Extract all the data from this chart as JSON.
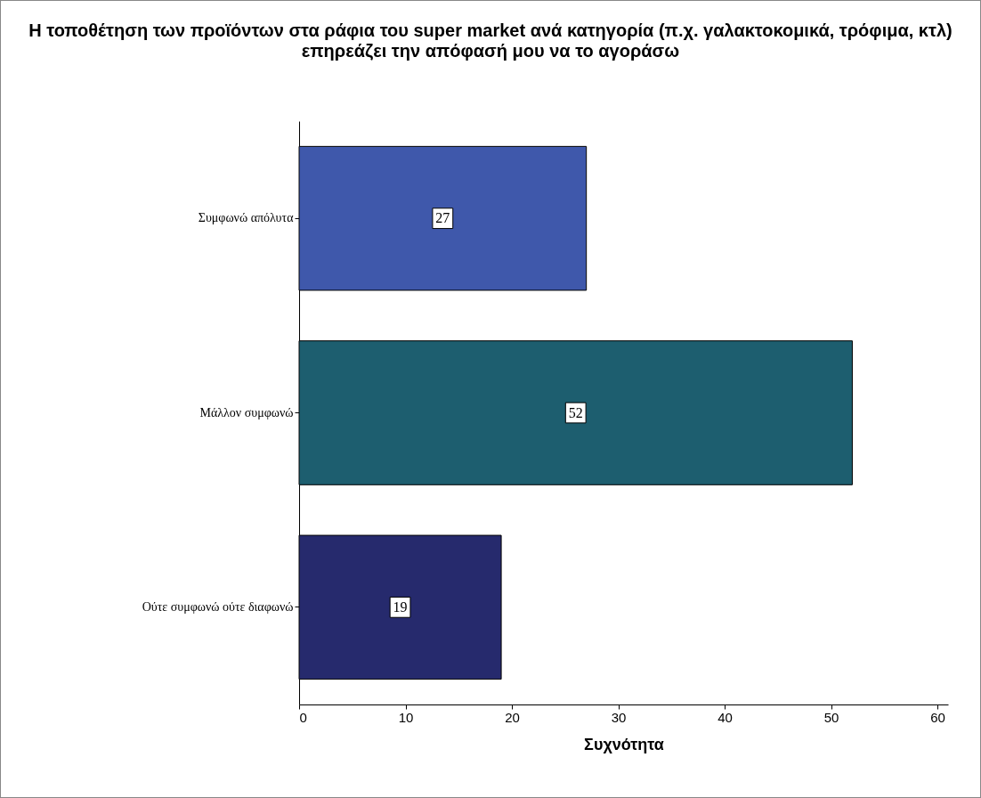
{
  "chart_data": {
    "type": "bar",
    "orientation": "horizontal",
    "title": "Η τοποθέτηση των προϊόντων στα ράφια του super market ανά κατηγορία (π.χ. γαλακτοκομικά, τρόφιμα, κτλ)  επηρεάζει την απόφασή μου να το αγοράσω",
    "xlabel": "Συχνότητα",
    "categories": [
      "Συμφωνώ απόλυτα",
      "Μάλλον συμφωνώ",
      "Ούτε συμφωνώ ούτε διαφωνώ"
    ],
    "values": [
      27,
      52,
      19
    ],
    "colors": [
      "#3f58ab",
      "#1d5e6f",
      "#262a6d"
    ],
    "xlim": [
      0,
      61
    ],
    "xticks": [
      0,
      10,
      20,
      30,
      40,
      50,
      60
    ],
    "data_labels": true,
    "grid": false
  }
}
